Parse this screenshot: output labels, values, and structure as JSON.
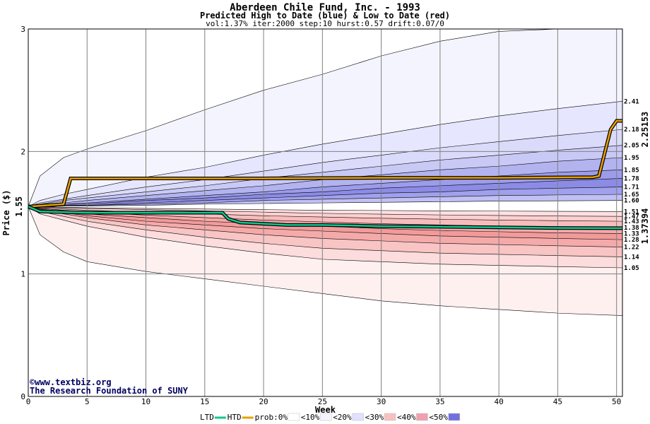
{
  "chart_data": {
    "type": "area",
    "title": "Aberdeen Chile Fund, Inc. - 1993",
    "subtitle": "Predicted High to Date (blue) &  Low to Date (red)",
    "params": "vol:1.37% iter:2000 step:10 hurst:0.57 drift:0.07/0",
    "xlabel": "Week",
    "ylabel": "Price ($)",
    "xlim": [
      0,
      50.5
    ],
    "ylim": [
      0,
      3
    ],
    "x_ticks": [
      "0",
      "5",
      "10",
      "15",
      "20",
      "25",
      "30",
      "35",
      "40",
      "45",
      "50"
    ],
    "y_ticks": [
      "0",
      "1",
      "2",
      "3"
    ],
    "start_price_label": "1.55",
    "start_price": 1.55,
    "htd_final_label": "2.25153",
    "ltd_final_label": "1.37394",
    "percentile_x": [
      0,
      1,
      3,
      5,
      10,
      15,
      20,
      25,
      30,
      35,
      40,
      45,
      50.5
    ],
    "upper_percentiles": [
      {
        "label": "2.41",
        "values": [
          1.55,
          1.6,
          1.65,
          1.69,
          1.79,
          1.87,
          1.97,
          2.06,
          2.14,
          2.22,
          2.29,
          2.35,
          2.41
        ]
      },
      {
        "label": "2.18",
        "values": [
          1.55,
          1.58,
          1.61,
          1.64,
          1.71,
          1.77,
          1.84,
          1.91,
          1.97,
          2.03,
          2.08,
          2.13,
          2.18
        ]
      },
      {
        "label": "2.05",
        "values": [
          1.55,
          1.57,
          1.6,
          1.62,
          1.67,
          1.72,
          1.78,
          1.83,
          1.88,
          1.93,
          1.97,
          2.01,
          2.05
        ]
      },
      {
        "label": "1.95",
        "values": [
          1.55,
          1.56,
          1.58,
          1.6,
          1.64,
          1.68,
          1.72,
          1.77,
          1.81,
          1.85,
          1.88,
          1.92,
          1.95
        ]
      },
      {
        "label": "1.85",
        "values": [
          1.55,
          1.56,
          1.57,
          1.58,
          1.61,
          1.64,
          1.67,
          1.71,
          1.74,
          1.77,
          1.8,
          1.83,
          1.85
        ]
      },
      {
        "label": "1.78",
        "values": [
          1.55,
          1.56,
          1.57,
          1.57,
          1.6,
          1.62,
          1.65,
          1.67,
          1.7,
          1.72,
          1.74,
          1.76,
          1.78
        ]
      },
      {
        "label": "1.71",
        "values": [
          1.55,
          1.55,
          1.56,
          1.56,
          1.58,
          1.6,
          1.62,
          1.64,
          1.66,
          1.67,
          1.69,
          1.7,
          1.71
        ]
      },
      {
        "label": "1.65",
        "values": [
          1.55,
          1.55,
          1.56,
          1.56,
          1.57,
          1.58,
          1.6,
          1.61,
          1.62,
          1.63,
          1.64,
          1.645,
          1.65
        ]
      },
      {
        "label": "1.60",
        "values": [
          1.55,
          1.55,
          1.555,
          1.555,
          1.56,
          1.57,
          1.575,
          1.58,
          1.585,
          1.59,
          1.595,
          1.597,
          1.6
        ]
      }
    ],
    "lower_percentiles": [
      {
        "label": "1.51",
        "values": [
          1.55,
          1.55,
          1.545,
          1.54,
          1.535,
          1.53,
          1.525,
          1.52,
          1.518,
          1.515,
          1.513,
          1.511,
          1.51
        ]
      },
      {
        "label": "1.47",
        "values": [
          1.55,
          1.545,
          1.54,
          1.535,
          1.525,
          1.515,
          1.505,
          1.495,
          1.488,
          1.482,
          1.477,
          1.473,
          1.47
        ]
      },
      {
        "label": "1.43",
        "values": [
          1.55,
          1.54,
          1.53,
          1.52,
          1.505,
          1.49,
          1.475,
          1.465,
          1.455,
          1.447,
          1.44,
          1.435,
          1.43
        ]
      },
      {
        "label": "1.38",
        "values": [
          1.55,
          1.535,
          1.52,
          1.505,
          1.48,
          1.46,
          1.44,
          1.425,
          1.41,
          1.4,
          1.39,
          1.385,
          1.38
        ]
      },
      {
        "label": "1.33",
        "values": [
          1.55,
          1.53,
          1.51,
          1.49,
          1.46,
          1.43,
          1.41,
          1.39,
          1.37,
          1.355,
          1.345,
          1.335,
          1.33
        ]
      },
      {
        "label": "1.28",
        "values": [
          1.55,
          1.525,
          1.5,
          1.475,
          1.43,
          1.4,
          1.37,
          1.35,
          1.33,
          1.31,
          1.3,
          1.29,
          1.28
        ]
      },
      {
        "label": "1.22",
        "values": [
          1.55,
          1.52,
          1.49,
          1.46,
          1.4,
          1.36,
          1.32,
          1.29,
          1.27,
          1.25,
          1.24,
          1.23,
          1.22
        ]
      },
      {
        "label": "1.14",
        "values": [
          1.55,
          1.51,
          1.47,
          1.43,
          1.36,
          1.3,
          1.25,
          1.21,
          1.19,
          1.17,
          1.16,
          1.15,
          1.14
        ]
      },
      {
        "label": "1.05",
        "values": [
          1.55,
          1.49,
          1.44,
          1.39,
          1.3,
          1.23,
          1.17,
          1.12,
          1.1,
          1.08,
          1.07,
          1.06,
          1.05
        ]
      }
    ],
    "outer_upper": {
      "x": [
        0,
        1,
        3,
        5,
        10,
        15,
        20,
        25,
        30,
        35,
        40,
        45,
        50.5
      ],
      "values": [
        1.55,
        1.8,
        1.95,
        2.02,
        2.17,
        2.34,
        2.5,
        2.63,
        2.78,
        2.9,
        2.98,
        3.0,
        3.0
      ]
    },
    "outer_lower": {
      "x": [
        0,
        1,
        3,
        5,
        10,
        15,
        20,
        25,
        30,
        35,
        40,
        45,
        50.5
      ],
      "values": [
        1.55,
        1.32,
        1.18,
        1.1,
        1.02,
        0.96,
        0.9,
        0.84,
        0.78,
        0.74,
        0.71,
        0.68,
        0.66
      ]
    },
    "series": [
      {
        "name": "HTD",
        "color": "#e8a000",
        "x": [
          0,
          3,
          3.6,
          10,
          20,
          30,
          40,
          48,
          48.5,
          49.5,
          50,
          50.5
        ],
        "values": [
          1.55,
          1.57,
          1.78,
          1.78,
          1.78,
          1.785,
          1.785,
          1.79,
          1.8,
          2.18,
          2.25,
          2.25
        ]
      },
      {
        "name": "LTD",
        "color": "#10c890",
        "x": [
          0,
          1,
          5,
          10,
          16.5,
          17,
          18,
          20,
          22,
          25,
          30,
          35,
          40,
          45,
          50,
          50.5
        ],
        "values": [
          1.55,
          1.51,
          1.5,
          1.5,
          1.5,
          1.45,
          1.42,
          1.41,
          1.4,
          1.4,
          1.39,
          1.385,
          1.38,
          1.375,
          1.374,
          1.374
        ]
      }
    ],
    "legend": {
      "items": [
        {
          "label": "LTD",
          "color": "#10c890",
          "kind": "line"
        },
        {
          "label": "HTD",
          "color": "#e8a000",
          "kind": "line"
        },
        {
          "label": "prob:0%",
          "color": "#ffffff",
          "kind": "swatch"
        },
        {
          "label": "<10%",
          "color": "#f4f4ff",
          "kind": "swatch"
        },
        {
          "label": "<20%",
          "color": "#e0e0ff",
          "kind": "swatch"
        },
        {
          "label": "<30%",
          "color": "#f8c0c0",
          "kind": "swatch"
        },
        {
          "label": "<40%",
          "color": "#f0a0b0",
          "kind": "swatch"
        },
        {
          "label": "<50%",
          "color": "#7070e0",
          "kind": "swatch"
        }
      ],
      "placement": "bottom"
    },
    "credit_line1": "©www.textbiz.org",
    "credit_line2": "The Research Foundation of SUNY",
    "grid": true
  }
}
